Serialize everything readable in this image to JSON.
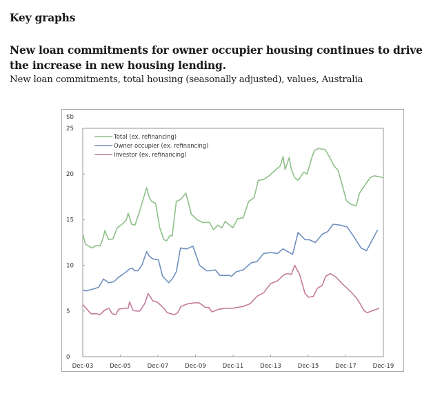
{
  "page": {
    "section_heading": "Key graphs",
    "title": "New loan commitments for owner occupier housing continues to drive the increase in new housing lending.",
    "subtitle": "New loan commitments, total housing (seasonally adjusted), values, Australia"
  },
  "chart_data": {
    "type": "line",
    "title": "New loan commitments, total housing (seasonally adjusted), values, Australia",
    "xlabel": "",
    "ylabel": "$b",
    "ylim": [
      0,
      25
    ],
    "xlim": [
      2003.92,
      2019.92
    ],
    "yticks": [
      0,
      5,
      10,
      15,
      20,
      25
    ],
    "xtick_labels": [
      "Dec-03",
      "Dec-05",
      "Dec-07",
      "Dec-09",
      "Dec-11",
      "Dec-13",
      "Dec-15",
      "Dec-17",
      "Dec-19"
    ],
    "xtick_values": [
      2003.92,
      2005.92,
      2007.92,
      2009.92,
      2011.92,
      2013.92,
      2015.92,
      2017.92,
      2019.92
    ],
    "grid": false,
    "legend_position": "top-left",
    "series": [
      {
        "name": "Total (ex. refinancing)",
        "color": "#8fbf8a",
        "x": [
          2003.92,
          2004.07,
          2004.4,
          2004.66,
          2004.84,
          2005.02,
          2005.09,
          2005.31,
          2005.53,
          2005.75,
          2006.01,
          2006.23,
          2006.34,
          2006.52,
          2006.7,
          2006.96,
          2007.32,
          2007.43,
          2007.58,
          2007.8,
          2008.02,
          2008.24,
          2008.39,
          2008.57,
          2008.68,
          2008.9,
          2009.12,
          2009.41,
          2009.7,
          2010.0,
          2010.29,
          2010.66,
          2010.88,
          2011.1,
          2011.32,
          2011.5,
          2011.91,
          2012.16,
          2012.46,
          2012.75,
          2013.04,
          2013.26,
          2013.55,
          2013.84,
          2014.21,
          2014.43,
          2014.58,
          2014.69,
          2014.91,
          2015.02,
          2015.2,
          2015.38,
          2015.68,
          2015.86,
          2016.11,
          2016.26,
          2016.48,
          2016.7,
          2016.81,
          2017.07,
          2017.29,
          2017.51,
          2017.73,
          2017.95,
          2018.17,
          2018.47,
          2018.65,
          2018.91,
          2019.21,
          2019.43,
          2019.7,
          2019.92
        ],
        "values": [
          13.4,
          12.3,
          11.9,
          12.2,
          12.1,
          13.1,
          13.8,
          12.8,
          12.9,
          14.1,
          14.5,
          14.9,
          15.7,
          14.5,
          14.4,
          16.0,
          18.5,
          17.6,
          17.0,
          16.8,
          14.1,
          12.8,
          12.7,
          13.3,
          13.2,
          17.0,
          17.2,
          17.9,
          15.6,
          15.0,
          14.7,
          14.7,
          13.9,
          14.4,
          14.1,
          14.8,
          14.1,
          15.1,
          15.2,
          17.0,
          17.4,
          19.3,
          19.4,
          19.8,
          20.5,
          20.9,
          21.9,
          20.5,
          21.8,
          20.5,
          19.6,
          19.3,
          20.2,
          20.0,
          21.8,
          22.6,
          22.8,
          22.7,
          22.7,
          21.8,
          20.9,
          20.4,
          18.8,
          17.1,
          16.7,
          16.5,
          17.9,
          18.7,
          19.6,
          19.8,
          19.7,
          19.6
        ]
      },
      {
        "name": "Owner occupier (ex. refinancing)",
        "color": "#6f8fbf",
        "x": [
          2003.92,
          2004.1,
          2004.47,
          2004.77,
          2005.02,
          2005.31,
          2005.57,
          2005.83,
          2006.12,
          2006.41,
          2006.56,
          2006.67,
          2006.85,
          2007.07,
          2007.32,
          2007.47,
          2007.65,
          2007.95,
          2008.17,
          2008.5,
          2008.68,
          2008.9,
          2009.12,
          2009.45,
          2009.78,
          2010.14,
          2010.51,
          2010.69,
          2010.98,
          2011.21,
          2011.47,
          2011.73,
          2011.84,
          2012.09,
          2012.46,
          2012.9,
          2013.19,
          2013.55,
          2013.92,
          2014.28,
          2014.58,
          2015.09,
          2015.38,
          2015.75,
          2015.97,
          2016.3,
          2016.66,
          2016.96,
          2017.25,
          2017.62,
          2017.99,
          2018.36,
          2018.73,
          2019.02,
          2019.62
        ],
        "values": [
          7.3,
          7.2,
          7.4,
          7.6,
          8.5,
          8.1,
          8.2,
          8.7,
          9.1,
          9.6,
          9.7,
          9.4,
          9.4,
          10.0,
          11.5,
          11.0,
          10.7,
          10.6,
          8.8,
          8.1,
          8.5,
          9.3,
          11.9,
          11.8,
          12.1,
          10.0,
          9.4,
          9.4,
          9.5,
          8.9,
          8.9,
          8.9,
          8.8,
          9.3,
          9.5,
          10.3,
          10.4,
          11.3,
          11.4,
          11.3,
          11.8,
          11.2,
          13.6,
          12.8,
          12.8,
          12.5,
          13.4,
          13.7,
          14.5,
          14.4,
          14.2,
          13.1,
          11.9,
          11.6,
          13.9
        ]
      },
      {
        "name": "Investor (ex. refinancing)",
        "color": "#c47a9c",
        "x": [
          2003.92,
          2004.1,
          2004.36,
          2004.66,
          2004.84,
          2005.09,
          2005.31,
          2005.49,
          2005.68,
          2005.83,
          2006.12,
          2006.34,
          2006.41,
          2006.59,
          2006.74,
          2006.96,
          2007.22,
          2007.4,
          2007.65,
          2007.87,
          2008.24,
          2008.42,
          2008.79,
          2008.97,
          2009.15,
          2009.52,
          2009.89,
          2010.11,
          2010.44,
          2010.62,
          2010.8,
          2011.17,
          2011.54,
          2011.91,
          2012.46,
          2012.83,
          2013.19,
          2013.55,
          2013.92,
          2014.28,
          2014.65,
          2014.84,
          2015.02,
          2015.2,
          2015.46,
          2015.75,
          2015.93,
          2016.19,
          2016.41,
          2016.66,
          2016.85,
          2017.1,
          2017.4,
          2017.77,
          2018.14,
          2018.5,
          2018.68,
          2018.87,
          2019.05,
          2019.7
        ],
        "values": [
          5.7,
          5.3,
          4.7,
          4.7,
          4.6,
          5.1,
          5.3,
          4.7,
          4.6,
          5.2,
          5.3,
          5.3,
          6.0,
          5.1,
          5.0,
          5.0,
          5.8,
          6.9,
          6.1,
          6.0,
          5.3,
          4.8,
          4.6,
          4.8,
          5.5,
          5.8,
          5.9,
          5.9,
          5.4,
          5.4,
          4.9,
          5.2,
          5.3,
          5.3,
          5.5,
          5.8,
          6.6,
          7.0,
          8.0,
          8.3,
          9.0,
          9.1,
          9.0,
          10.0,
          9.0,
          6.9,
          6.5,
          6.6,
          7.5,
          7.8,
          8.8,
          9.1,
          8.7,
          7.9,
          7.2,
          6.4,
          5.8,
          5.1,
          4.8,
          5.3
        ]
      }
    ]
  }
}
